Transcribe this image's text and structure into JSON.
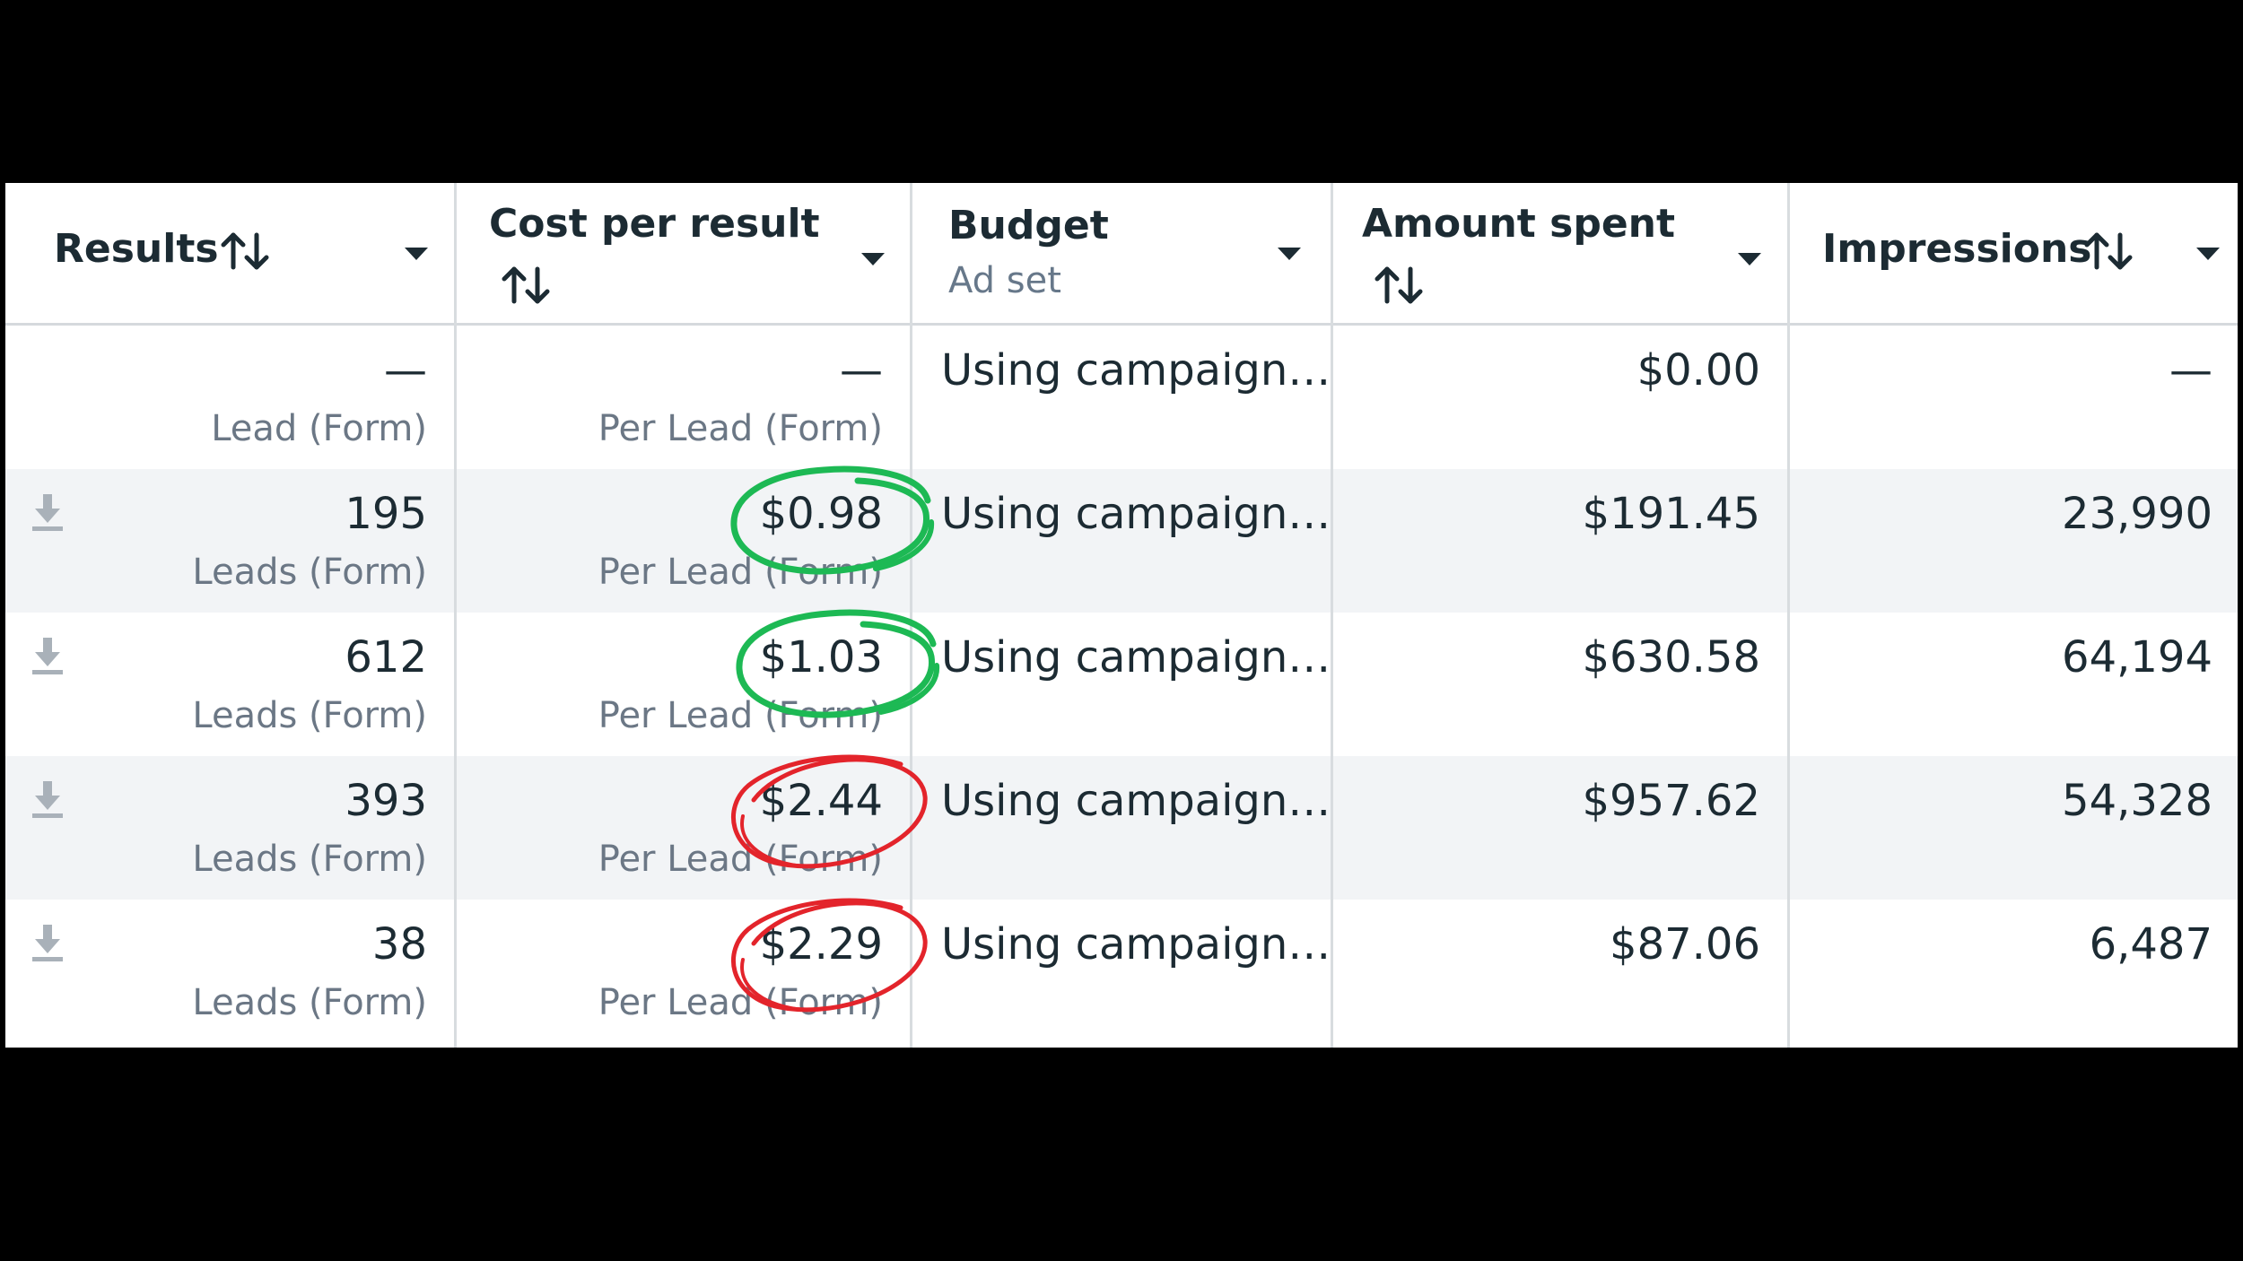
{
  "header": {
    "results": {
      "title": "Results"
    },
    "cost_per_result": {
      "title": "Cost per result"
    },
    "budget": {
      "title": "Budget",
      "subtitle": "Ad set"
    },
    "amount_spent": {
      "title": "Amount spent"
    },
    "impressions": {
      "title": "Impressions"
    }
  },
  "rows": [
    {
      "results": "—",
      "results_unit": "Lead (Form)",
      "cost": "—",
      "cost_unit": "Per Lead (Form)",
      "budget": "Using campaign…",
      "spent": "$0.00",
      "impressions": "—",
      "download": false,
      "highlight": "none"
    },
    {
      "results": "195",
      "results_unit": "Leads (Form)",
      "cost": "$0.98",
      "cost_unit": "Per Lead (Form)",
      "budget": "Using campaign…",
      "spent": "$191.45",
      "impressions": "23,990",
      "download": true,
      "highlight": "green"
    },
    {
      "results": "612",
      "results_unit": "Leads (Form)",
      "cost": "$1.03",
      "cost_unit": "Per Lead (Form)",
      "budget": "Using campaign…",
      "spent": "$630.58",
      "impressions": "64,194",
      "download": true,
      "highlight": "green"
    },
    {
      "results": "393",
      "results_unit": "Leads (Form)",
      "cost": "$2.44",
      "cost_unit": "Per Lead (Form)",
      "budget": "Using campaign…",
      "spent": "$957.62",
      "impressions": "54,328",
      "download": true,
      "highlight": "red"
    },
    {
      "results": "38",
      "results_unit": "Leads (Form)",
      "cost": "$2.29",
      "cost_unit": "Per Lead (Form)",
      "budget": "Using campaign…",
      "spent": "$87.06",
      "impressions": "6,487",
      "download": true,
      "highlight": "red"
    }
  ],
  "colors": {
    "green_circle": "#1db954",
    "red_circle": "#e3242b",
    "row_shade": "#f2f4f6"
  },
  "icons": {
    "sort": "sort-arrows-icon",
    "dropdown": "caret-down-icon",
    "download": "download-icon"
  }
}
